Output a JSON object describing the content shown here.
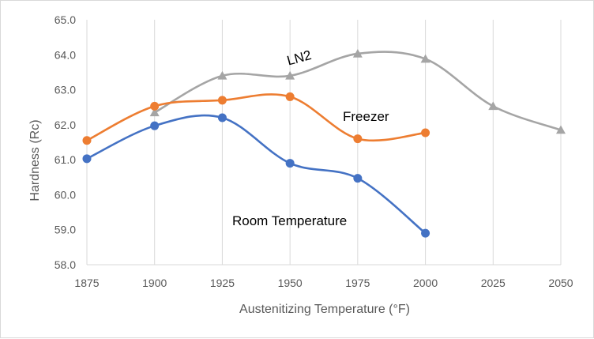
{
  "chart_data": {
    "type": "line",
    "xlabel": "Austenitizing Temperature (°F)",
    "ylabel": "Hardness (Rc)",
    "xlim": [
      1875,
      2050
    ],
    "ylim": [
      58.0,
      65.0
    ],
    "x_ticks": [
      "1875",
      "1900",
      "1925",
      "1950",
      "1975",
      "2000",
      "2025",
      "2050"
    ],
    "y_ticks": [
      "58.0",
      "59.0",
      "60.0",
      "61.0",
      "62.0",
      "63.0",
      "64.0",
      "65.0"
    ],
    "grid": "vertical",
    "series": [
      {
        "name": "Room Temperature",
        "color": "#4472c4",
        "marker": "circle",
        "x": [
          1875,
          1900,
          1925,
          1950,
          1975,
          2000
        ],
        "y": [
          61.03,
          61.97,
          62.2,
          60.9,
          60.47,
          58.9
        ]
      },
      {
        "name": "Freezer",
        "color": "#ed7d31",
        "marker": "circle",
        "x": [
          1875,
          1900,
          1925,
          1950,
          1975,
          2000
        ],
        "y": [
          61.55,
          62.53,
          62.7,
          62.8,
          61.6,
          61.77
        ]
      },
      {
        "name": "LN2",
        "color": "#a5a5a5",
        "marker": "triangle",
        "x": [
          1900,
          1925,
          1950,
          1975,
          2000,
          2025,
          2050
        ],
        "y": [
          62.35,
          63.4,
          63.4,
          64.03,
          63.88,
          62.53,
          61.85
        ]
      }
    ],
    "annotations": [
      "Room Temperature",
      "Freezer",
      "LN2"
    ]
  }
}
